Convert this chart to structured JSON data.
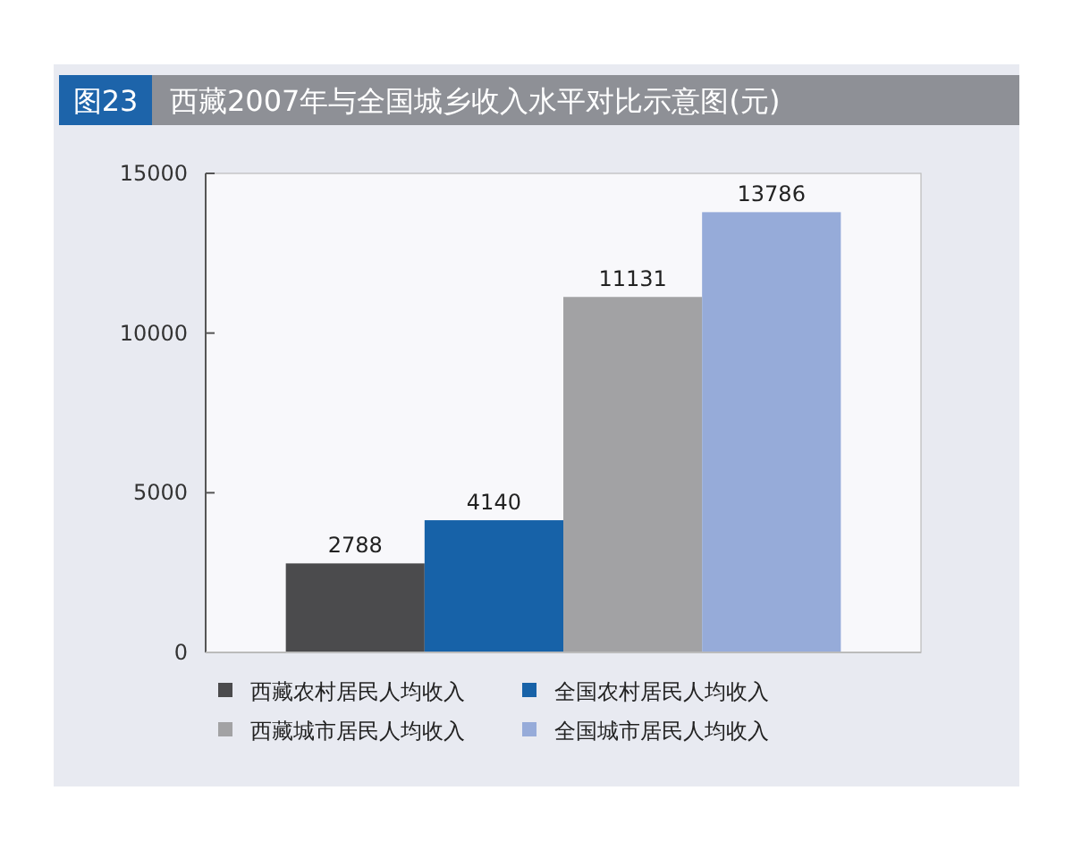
{
  "chart_data": {
    "type": "bar",
    "title": "西藏2007年与全国城乡收入水平对比示意图(元)",
    "annotations": [
      "图23"
    ],
    "categories": [
      null
    ],
    "series": [
      {
        "name": "西藏农村居民人均收入",
        "color": "#4b4b4d",
        "values": [
          2788
        ]
      },
      {
        "name": "全国农村居民人均收入",
        "color": "#1762a8",
        "values": [
          4140
        ]
      },
      {
        "name": "西藏城市居民人均收入",
        "color": "#a2a2a4",
        "values": [
          11131
        ]
      },
      {
        "name": "全国城市居民人均收入",
        "color": "#96abd9",
        "values": [
          13786
        ]
      }
    ],
    "ylim": [
      0,
      15000
    ],
    "yticks": [
      0,
      5000,
      10000,
      15000
    ],
    "grid": false,
    "legend": "bottom",
    "data_labels": true
  }
}
